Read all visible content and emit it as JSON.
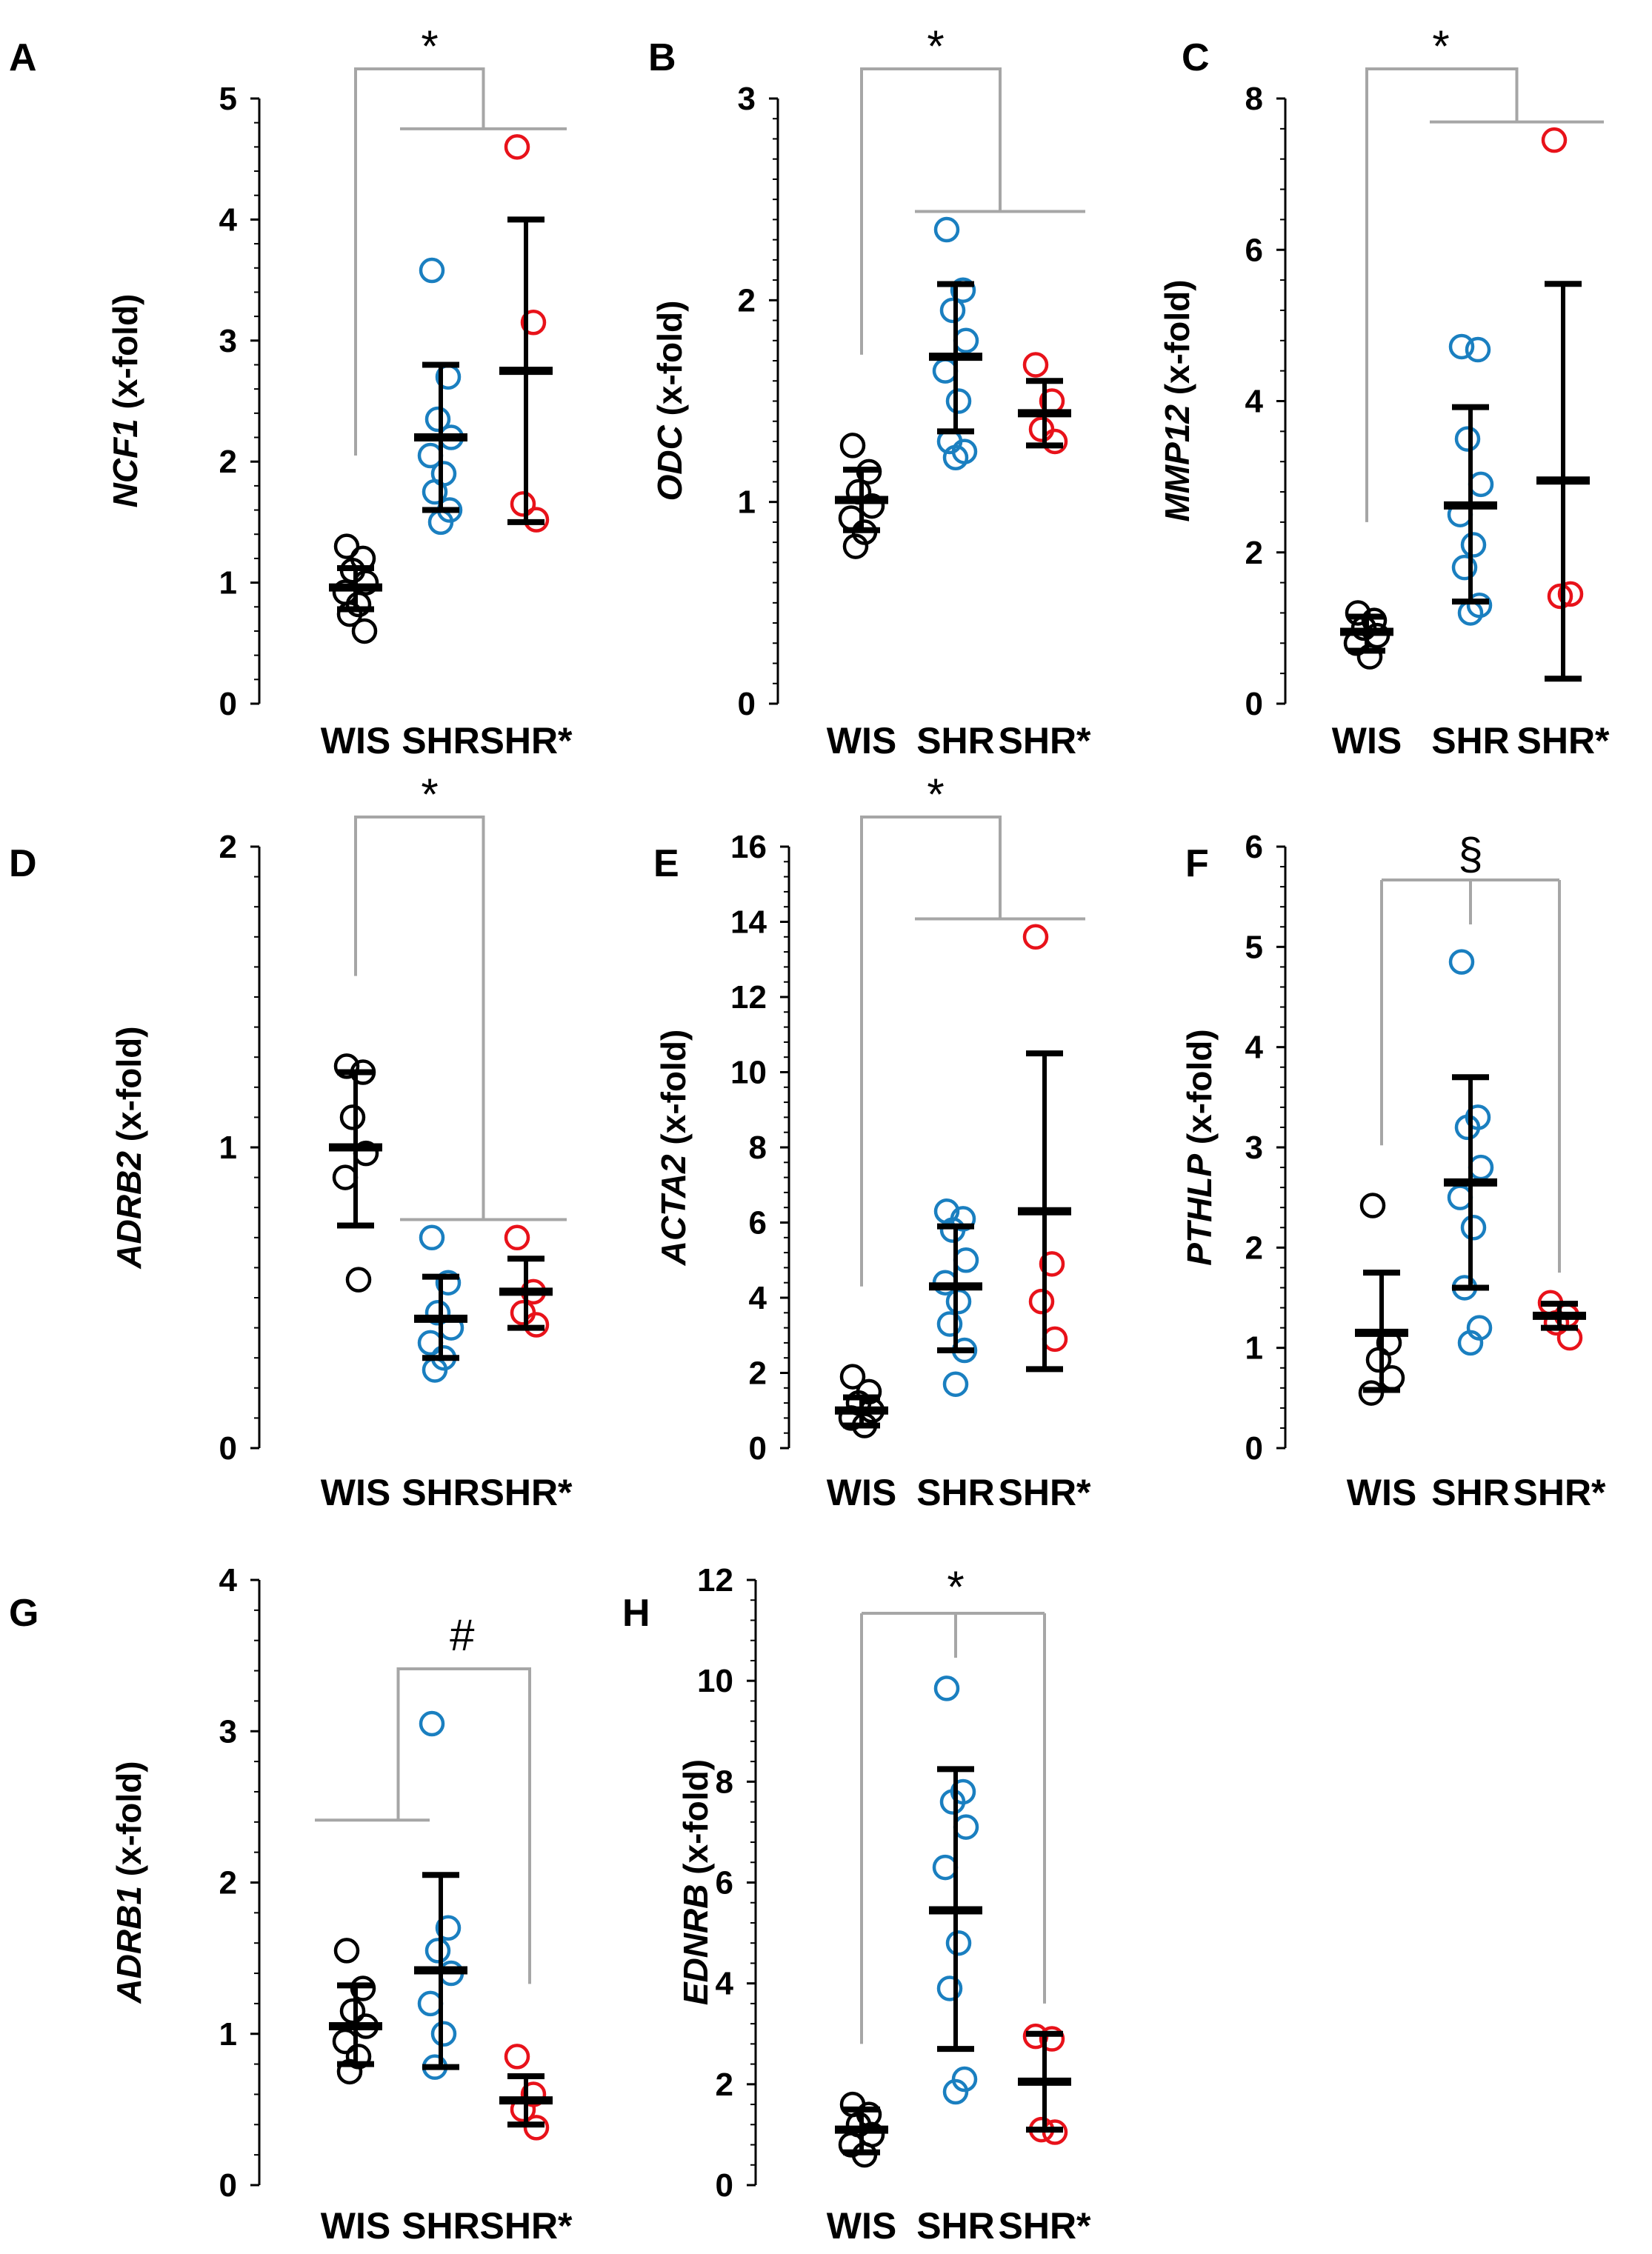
{
  "colors": {
    "WIS": "#000000",
    "SHR": "#1a7fc0",
    "SHR*": "#e8121a",
    "bracket": "#a6a6a6",
    "axis": "#000000"
  },
  "chart_data": [
    {
      "type": "scatter",
      "panel": "A",
      "gene": "NCF1",
      "unit": " (x-fold)",
      "categories": [
        "WIS",
        "SHR",
        "SHR*"
      ],
      "ylim": [
        0,
        5
      ],
      "yticks": [
        "0",
        "1",
        "2",
        "3",
        "4",
        "5"
      ],
      "significance": "*",
      "bracket": "wis-vs-shr",
      "series": [
        {
          "name": "WIS",
          "mean": 0.96,
          "lower": 0.78,
          "upper": 1.12,
          "points": [
            1.3,
            1.2,
            1.1,
            1.0,
            0.92,
            0.82,
            0.74,
            0.6
          ]
        },
        {
          "name": "SHR",
          "mean": 2.2,
          "lower": 1.6,
          "upper": 2.8,
          "points": [
            3.58,
            2.7,
            2.35,
            2.2,
            2.05,
            1.9,
            1.75,
            1.6,
            1.5
          ]
        },
        {
          "name": "SHR*",
          "mean": 2.75,
          "lower": 1.5,
          "upper": 4.0,
          "points": [
            4.6,
            3.15,
            1.65,
            1.52
          ]
        }
      ]
    },
    {
      "type": "scatter",
      "panel": "B",
      "gene": "ODC",
      "unit": " (x-fold)",
      "categories": [
        "WIS",
        "SHR",
        "SHR*"
      ],
      "ylim": [
        0,
        3
      ],
      "yticks": [
        "0",
        "1",
        "2",
        "3"
      ],
      "significance": "*",
      "bracket": "wis-vs-shr",
      "series": [
        {
          "name": "WIS",
          "mean": 1.01,
          "lower": 0.86,
          "upper": 1.16,
          "points": [
            1.28,
            1.15,
            1.05,
            0.98,
            0.92,
            0.85,
            0.78
          ]
        },
        {
          "name": "SHR",
          "mean": 1.72,
          "lower": 1.35,
          "upper": 2.08,
          "points": [
            2.35,
            2.05,
            1.95,
            1.8,
            1.65,
            1.5,
            1.3,
            1.25,
            1.22
          ]
        },
        {
          "name": "SHR*",
          "mean": 1.44,
          "lower": 1.28,
          "upper": 1.6,
          "points": [
            1.68,
            1.5,
            1.36,
            1.3
          ]
        }
      ]
    },
    {
      "type": "scatter",
      "panel": "C",
      "gene": "MMP12",
      "unit": " (x-fold)",
      "categories": [
        "WIS",
        "SHR",
        "SHR*"
      ],
      "ylim": [
        0,
        8
      ],
      "yticks": [
        "0",
        "2",
        "4",
        "6",
        "8"
      ],
      "significance": "*",
      "bracket": "wis-vs-shr",
      "series": [
        {
          "name": "WIS",
          "mean": 0.95,
          "lower": 0.7,
          "upper": 1.15,
          "points": [
            1.2,
            1.1,
            1.0,
            0.9,
            0.8,
            0.62
          ]
        },
        {
          "name": "SHR",
          "mean": 2.62,
          "lower": 1.35,
          "upper": 3.92,
          "points": [
            4.72,
            4.68,
            3.5,
            2.9,
            2.5,
            2.1,
            1.8,
            1.3,
            1.2
          ]
        },
        {
          "name": "SHR*",
          "mean": 2.95,
          "lower": 0.33,
          "upper": 5.55,
          "points": [
            7.45,
            1.45,
            1.42
          ]
        }
      ]
    },
    {
      "type": "scatter",
      "panel": "D",
      "gene": "ADRB2",
      "unit": " (x-fold)",
      "categories": [
        "WIS",
        "SHR",
        "SHR*"
      ],
      "ylim": [
        0,
        2
      ],
      "yticks": [
        "0",
        "1",
        "2"
      ],
      "significance": "*",
      "bracket": "wis-vs-shr",
      "series": [
        {
          "name": "WIS",
          "mean": 1.0,
          "lower": 0.74,
          "upper": 1.25,
          "points": [
            1.27,
            1.25,
            1.1,
            0.98,
            0.9,
            0.56
          ]
        },
        {
          "name": "SHR",
          "mean": 0.43,
          "lower": 0.3,
          "upper": 0.57,
          "points": [
            0.7,
            0.55,
            0.45,
            0.4,
            0.35,
            0.3,
            0.26
          ]
        },
        {
          "name": "SHR*",
          "mean": 0.52,
          "lower": 0.4,
          "upper": 0.63,
          "points": [
            0.7,
            0.52,
            0.45,
            0.41
          ]
        }
      ]
    },
    {
      "type": "scatter",
      "panel": "E",
      "gene": "ACTA2",
      "unit": " (x-fold)",
      "categories": [
        "WIS",
        "SHR",
        "SHR*"
      ],
      "ylim": [
        0,
        16
      ],
      "yticks": [
        "0",
        "2",
        "4",
        "6",
        "8",
        "10",
        "12",
        "14",
        "16"
      ],
      "significance": "*",
      "bracket": "wis-vs-shr",
      "series": [
        {
          "name": "WIS",
          "mean": 1.0,
          "lower": 0.6,
          "upper": 1.35,
          "points": [
            1.9,
            1.5,
            1.2,
            1.0,
            0.8,
            0.6
          ]
        },
        {
          "name": "SHR",
          "mean": 4.3,
          "lower": 2.6,
          "upper": 5.9,
          "points": [
            6.3,
            6.1,
            5.8,
            5.0,
            4.4,
            3.9,
            3.3,
            2.6,
            1.7
          ]
        },
        {
          "name": "SHR*",
          "mean": 6.3,
          "lower": 2.1,
          "upper": 10.5,
          "points": [
            13.6,
            4.9,
            3.9,
            2.9
          ]
        }
      ]
    },
    {
      "type": "scatter",
      "panel": "F",
      "gene": "PTHLP",
      "unit": " (x-fold)",
      "categories": [
        "WIS",
        "SHR",
        "SHR*"
      ],
      "ylim": [
        0,
        6
      ],
      "yticks": [
        "0",
        "1",
        "2",
        "3",
        "4",
        "5",
        "6"
      ],
      "significance": "§",
      "bracket": "three-way",
      "series": [
        {
          "name": "WIS",
          "mean": 1.15,
          "lower": 0.58,
          "upper": 1.75,
          "points": [
            2.42,
            1.05,
            0.88,
            0.7,
            0.55
          ]
        },
        {
          "name": "SHR",
          "mean": 2.65,
          "lower": 1.6,
          "upper": 3.7,
          "points": [
            4.85,
            3.3,
            3.2,
            2.8,
            2.5,
            2.2,
            1.6,
            1.2,
            1.05
          ]
        },
        {
          "name": "SHR*",
          "mean": 1.32,
          "lower": 1.2,
          "upper": 1.44,
          "points": [
            1.45,
            1.32,
            1.25,
            1.1
          ]
        }
      ]
    },
    {
      "type": "scatter",
      "panel": "G",
      "gene": "ADRB1",
      "unit": " (x-fold)",
      "categories": [
        "WIS",
        "SHR",
        "SHR*"
      ],
      "ylim": [
        0,
        4
      ],
      "yticks": [
        "0",
        "1",
        "2",
        "3",
        "4"
      ],
      "significance": "#",
      "bracket": "wisshr-vs-shrstar",
      "series": [
        {
          "name": "WIS",
          "mean": 1.05,
          "lower": 0.8,
          "upper": 1.32,
          "points": [
            1.55,
            1.3,
            1.15,
            1.05,
            0.95,
            0.85,
            0.75
          ]
        },
        {
          "name": "SHR",
          "mean": 1.42,
          "lower": 0.78,
          "upper": 2.05,
          "points": [
            3.05,
            1.7,
            1.55,
            1.4,
            1.2,
            1.0,
            0.78
          ]
        },
        {
          "name": "SHR*",
          "mean": 0.56,
          "lower": 0.4,
          "upper": 0.72,
          "points": [
            0.85,
            0.6,
            0.5,
            0.38
          ]
        }
      ]
    },
    {
      "type": "scatter",
      "panel": "H",
      "gene": "EDNRB",
      "unit": " (x-fold)",
      "categories": [
        "WIS",
        "SHR",
        "SHR*"
      ],
      "ylim": [
        0,
        12
      ],
      "yticks": [
        "0",
        "2",
        "4",
        "6",
        "8",
        "10",
        "12"
      ],
      "significance": "*",
      "bracket": "three-way",
      "series": [
        {
          "name": "WIS",
          "mean": 1.1,
          "lower": 0.65,
          "upper": 1.5,
          "points": [
            1.6,
            1.4,
            1.2,
            1.0,
            0.8,
            0.6
          ]
        },
        {
          "name": "SHR",
          "mean": 5.45,
          "lower": 2.7,
          "upper": 8.25,
          "points": [
            9.85,
            7.8,
            7.6,
            7.1,
            6.3,
            4.8,
            3.9,
            2.1,
            1.85
          ]
        },
        {
          "name": "SHR*",
          "mean": 2.05,
          "lower": 1.1,
          "upper": 3.0,
          "points": [
            2.95,
            2.9,
            1.1,
            1.05
          ]
        }
      ]
    }
  ]
}
